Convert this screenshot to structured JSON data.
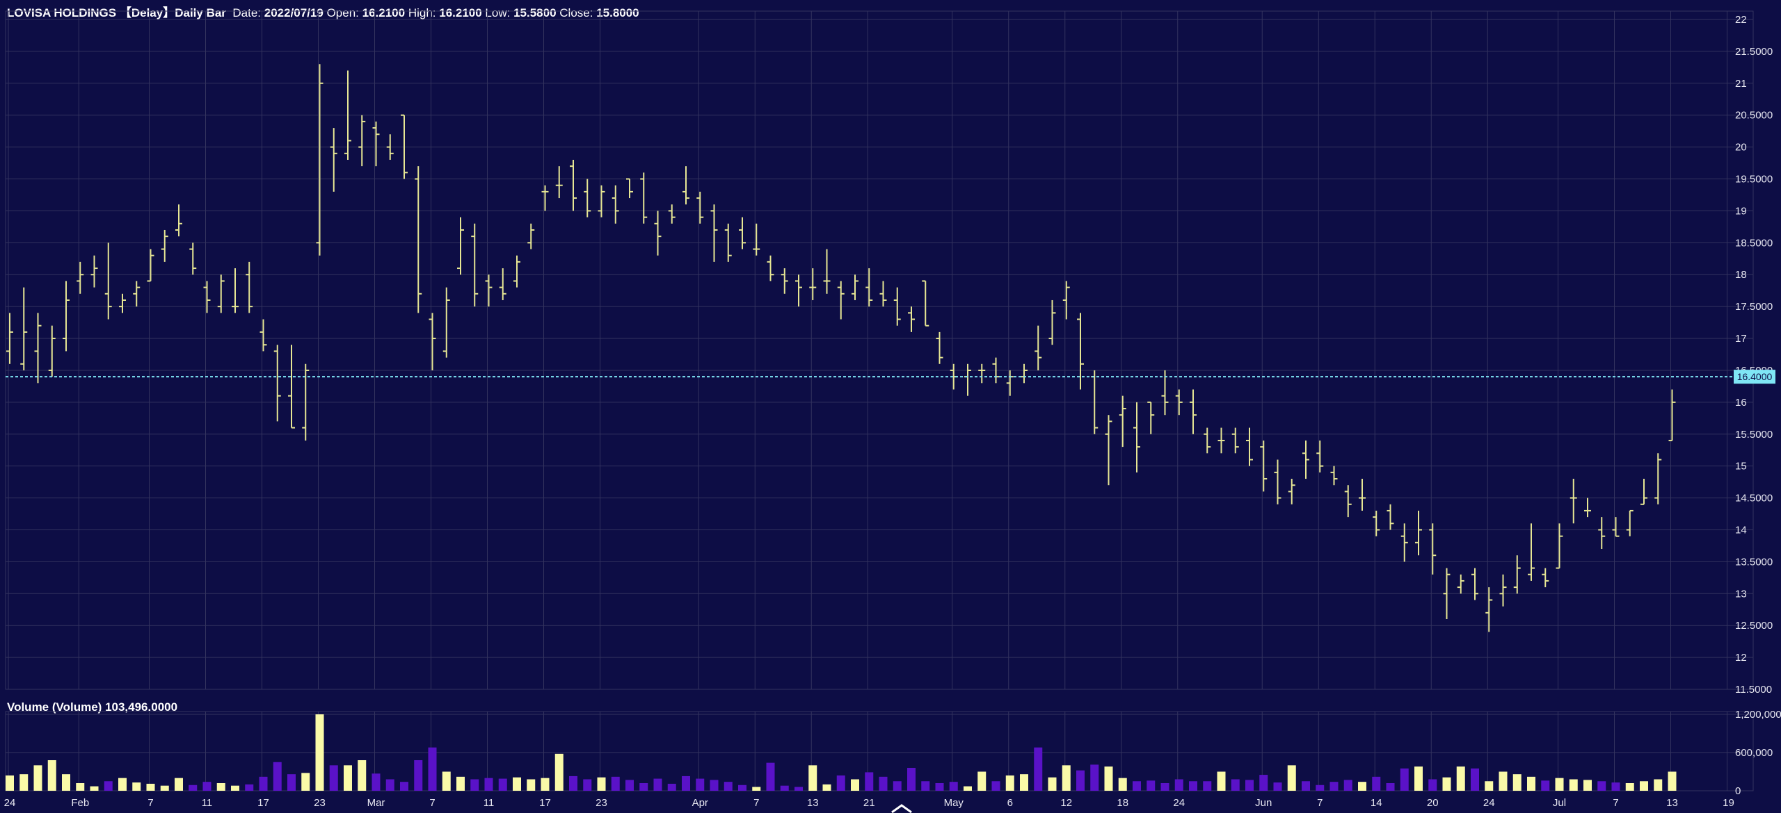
{
  "header": {
    "instrument": "LOVISA HOLDINGS",
    "feed": "【Delay】Daily Bar",
    "date_label": "Date:",
    "date_value": "2022/07/19",
    "open_label": "Open:",
    "open_value": "16.2100",
    "high_label": "High:",
    "high_value": "16.2100",
    "low_label": "Low:",
    "low_value": "15.5800",
    "close_label": "Close:",
    "close_value": "15.8000"
  },
  "volume_header": {
    "label": "Volume (Volume)",
    "value": "103,496.0000"
  },
  "colors": {
    "background": "#0d0d45",
    "grid": "#33335e",
    "bar": "#e6e694",
    "volume_up": "#fafaa8",
    "volume_down": "#5a12c8",
    "last_price_line": "#7fe6f5"
  },
  "chart_data": {
    "type": "ohlc",
    "last_price": 16.4,
    "last_price_label": "16.4000",
    "y_range": [
      11.5,
      22
    ],
    "y_ticks": [
      "22",
      "21.5000",
      "21",
      "20.5000",
      "20",
      "19.5000",
      "19",
      "18.5000",
      "18",
      "17.5000",
      "17",
      "16.5000",
      "16",
      "15.5000",
      "15",
      "14.5000",
      "14",
      "13.5000",
      "13",
      "12.5000",
      "12",
      "11.5000"
    ],
    "volume_range": [
      0,
      1200000
    ],
    "volume_ticks": [
      "1,200,000",
      "600,000",
      "0"
    ],
    "x_ticks": [
      {
        "label": "24",
        "i": 0
      },
      {
        "label": "Feb",
        "i": 5
      },
      {
        "label": "7",
        "i": 10
      },
      {
        "label": "11",
        "i": 14
      },
      {
        "label": "17",
        "i": 18
      },
      {
        "label": "23",
        "i": 22
      },
      {
        "label": "Mar",
        "i": 26
      },
      {
        "label": "7",
        "i": 30
      },
      {
        "label": "11",
        "i": 34
      },
      {
        "label": "17",
        "i": 38
      },
      {
        "label": "23",
        "i": 42
      },
      {
        "label": "Apr",
        "i": 49
      },
      {
        "label": "7",
        "i": 53
      },
      {
        "label": "13",
        "i": 57
      },
      {
        "label": "21",
        "i": 61
      },
      {
        "label": "May",
        "i": 67
      },
      {
        "label": "6",
        "i": 71
      },
      {
        "label": "12",
        "i": 75
      },
      {
        "label": "18",
        "i": 79
      },
      {
        "label": "24",
        "i": 83
      },
      {
        "label": "Jun",
        "i": 89
      },
      {
        "label": "7",
        "i": 93
      },
      {
        "label": "14",
        "i": 97
      },
      {
        "label": "20",
        "i": 101
      },
      {
        "label": "24",
        "i": 105
      },
      {
        "label": "Jul",
        "i": 110
      },
      {
        "label": "7",
        "i": 114
      },
      {
        "label": "13",
        "i": 118
      },
      {
        "label": "19",
        "i": 122
      }
    ],
    "bars": [
      {
        "o": 16.8,
        "h": 17.4,
        "l": 16.6,
        "c": 17.1,
        "v": 240000
      },
      {
        "o": 16.6,
        "h": 17.8,
        "l": 16.5,
        "c": 17.1,
        "v": 260000
      },
      {
        "o": 16.8,
        "h": 17.4,
        "l": 16.3,
        "c": 17.2,
        "v": 400000
      },
      {
        "o": 16.5,
        "h": 17.2,
        "l": 16.4,
        "c": 17.0,
        "v": 480000
      },
      {
        "o": 17.0,
        "h": 17.9,
        "l": 16.8,
        "c": 17.6,
        "v": 260000
      },
      {
        "o": 17.9,
        "h": 18.2,
        "l": 17.7,
        "c": 18.0,
        "v": 120000
      },
      {
        "o": 18.0,
        "h": 18.3,
        "l": 17.8,
        "c": 18.1,
        "v": 70000
      },
      {
        "o": 17.7,
        "h": 18.5,
        "l": 17.3,
        "c": 17.5,
        "v": 150000
      },
      {
        "o": 17.5,
        "h": 17.7,
        "l": 17.4,
        "c": 17.6,
        "v": 200000
      },
      {
        "o": 17.7,
        "h": 17.9,
        "l": 17.5,
        "c": 17.8,
        "v": 130000
      },
      {
        "o": 17.9,
        "h": 18.4,
        "l": 17.9,
        "c": 18.3,
        "v": 110000
      },
      {
        "o": 18.4,
        "h": 18.7,
        "l": 18.2,
        "c": 18.6,
        "v": 80000
      },
      {
        "o": 18.7,
        "h": 19.1,
        "l": 18.6,
        "c": 18.8,
        "v": 200000
      },
      {
        "o": 18.4,
        "h": 18.5,
        "l": 18.0,
        "c": 18.1,
        "v": 90000
      },
      {
        "o": 17.8,
        "h": 17.9,
        "l": 17.4,
        "c": 17.6,
        "v": 140000
      },
      {
        "o": 17.5,
        "h": 18.0,
        "l": 17.4,
        "c": 17.9,
        "v": 120000
      },
      {
        "o": 17.5,
        "h": 18.1,
        "l": 17.4,
        "c": 17.5,
        "v": 80000
      },
      {
        "o": 18.0,
        "h": 18.2,
        "l": 17.4,
        "c": 17.5,
        "v": 100000
      },
      {
        "o": 17.1,
        "h": 17.3,
        "l": 16.8,
        "c": 16.9,
        "v": 220000
      },
      {
        "o": 16.8,
        "h": 16.9,
        "l": 15.7,
        "c": 16.1,
        "v": 450000
      },
      {
        "o": 16.1,
        "h": 16.9,
        "l": 15.6,
        "c": 15.6,
        "v": 260000
      },
      {
        "o": 15.6,
        "h": 16.6,
        "l": 15.4,
        "c": 16.5,
        "v": 280000
      },
      {
        "o": 18.5,
        "h": 21.3,
        "l": 18.3,
        "c": 21.0,
        "v": 1200000
      },
      {
        "o": 20.0,
        "h": 20.3,
        "l": 19.3,
        "c": 19.9,
        "v": 400000
      },
      {
        "o": 19.9,
        "h": 21.2,
        "l": 19.8,
        "c": 20.1,
        "v": 400000
      },
      {
        "o": 20.0,
        "h": 20.5,
        "l": 19.7,
        "c": 20.4,
        "v": 480000
      },
      {
        "o": 20.3,
        "h": 20.4,
        "l": 19.7,
        "c": 20.2,
        "v": 270000
      },
      {
        "o": 20.0,
        "h": 20.2,
        "l": 19.8,
        "c": 19.9,
        "v": 180000
      },
      {
        "o": 20.5,
        "h": 20.5,
        "l": 19.5,
        "c": 19.6,
        "v": 140000
      },
      {
        "o": 19.5,
        "h": 19.7,
        "l": 17.4,
        "c": 17.7,
        "v": 480000
      },
      {
        "o": 17.3,
        "h": 17.4,
        "l": 16.5,
        "c": 17.0,
        "v": 680000
      },
      {
        "o": 16.8,
        "h": 17.8,
        "l": 16.7,
        "c": 17.6,
        "v": 300000
      },
      {
        "o": 18.1,
        "h": 18.9,
        "l": 18.0,
        "c": 18.7,
        "v": 220000
      },
      {
        "o": 18.6,
        "h": 18.8,
        "l": 17.5,
        "c": 17.7,
        "v": 180000
      },
      {
        "o": 17.9,
        "h": 18.0,
        "l": 17.5,
        "c": 17.8,
        "v": 200000
      },
      {
        "o": 17.8,
        "h": 18.1,
        "l": 17.6,
        "c": 17.7,
        "v": 190000
      },
      {
        "o": 17.9,
        "h": 18.3,
        "l": 17.8,
        "c": 18.2,
        "v": 210000
      },
      {
        "o": 18.5,
        "h": 18.8,
        "l": 18.4,
        "c": 18.7,
        "v": 180000
      },
      {
        "o": 19.3,
        "h": 19.4,
        "l": 19.0,
        "c": 19.3,
        "v": 200000
      },
      {
        "o": 19.4,
        "h": 19.7,
        "l": 19.2,
        "c": 19.4,
        "v": 580000
      },
      {
        "o": 19.7,
        "h": 19.8,
        "l": 19.0,
        "c": 19.2,
        "v": 230000
      },
      {
        "o": 19.3,
        "h": 19.5,
        "l": 18.9,
        "c": 19.0,
        "v": 180000
      },
      {
        "o": 19.0,
        "h": 19.4,
        "l": 18.9,
        "c": 19.3,
        "v": 210000
      },
      {
        "o": 19.2,
        "h": 19.4,
        "l": 18.8,
        "c": 19.0,
        "v": 220000
      },
      {
        "o": 19.5,
        "h": 19.5,
        "l": 19.2,
        "c": 19.3,
        "v": 170000
      },
      {
        "o": 19.5,
        "h": 19.6,
        "l": 18.8,
        "c": 18.9,
        "v": 120000
      },
      {
        "o": 18.8,
        "h": 19.0,
        "l": 18.3,
        "c": 18.6,
        "v": 190000
      },
      {
        "o": 19.0,
        "h": 19.1,
        "l": 18.8,
        "c": 18.9,
        "v": 110000
      },
      {
        "o": 19.3,
        "h": 19.7,
        "l": 19.1,
        "c": 19.2,
        "v": 230000
      },
      {
        "o": 19.2,
        "h": 19.3,
        "l": 18.8,
        "c": 18.9,
        "v": 190000
      },
      {
        "o": 19.0,
        "h": 19.1,
        "l": 18.2,
        "c": 18.7,
        "v": 170000
      },
      {
        "o": 18.7,
        "h": 18.8,
        "l": 18.2,
        "c": 18.3,
        "v": 140000
      },
      {
        "o": 18.7,
        "h": 18.9,
        "l": 18.4,
        "c": 18.5,
        "v": 90000
      },
      {
        "o": 18.4,
        "h": 18.8,
        "l": 18.3,
        "c": 18.4,
        "v": 60000
      },
      {
        "o": 18.2,
        "h": 18.3,
        "l": 17.9,
        "c": 18.0,
        "v": 440000
      },
      {
        "o": 18.0,
        "h": 18.1,
        "l": 17.7,
        "c": 17.9,
        "v": 80000
      },
      {
        "o": 17.9,
        "h": 18.0,
        "l": 17.5,
        "c": 17.8,
        "v": 60000
      },
      {
        "o": 17.8,
        "h": 18.1,
        "l": 17.6,
        "c": 17.8,
        "v": 400000
      },
      {
        "o": 17.9,
        "h": 18.4,
        "l": 17.7,
        "c": 17.9,
        "v": 100000
      },
      {
        "o": 17.8,
        "h": 17.9,
        "l": 17.3,
        "c": 17.7,
        "v": 240000
      },
      {
        "o": 17.7,
        "h": 18.0,
        "l": 17.6,
        "c": 17.9,
        "v": 180000
      },
      {
        "o": 17.8,
        "h": 18.1,
        "l": 17.5,
        "c": 17.6,
        "v": 290000
      },
      {
        "o": 17.7,
        "h": 17.9,
        "l": 17.5,
        "c": 17.6,
        "v": 220000
      },
      {
        "o": 17.6,
        "h": 17.8,
        "l": 17.2,
        "c": 17.3,
        "v": 150000
      },
      {
        "o": 17.4,
        "h": 17.5,
        "l": 17.1,
        "c": 17.3,
        "v": 360000
      },
      {
        "o": 17.9,
        "h": 17.9,
        "l": 17.2,
        "c": 17.2,
        "v": 150000
      },
      {
        "o": 17.0,
        "h": 17.1,
        "l": 16.6,
        "c": 16.7,
        "v": 120000
      },
      {
        "o": 16.5,
        "h": 16.6,
        "l": 16.2,
        "c": 16.4,
        "v": 140000
      },
      {
        "o": 16.4,
        "h": 16.6,
        "l": 16.1,
        "c": 16.5,
        "v": 70000
      },
      {
        "o": 16.5,
        "h": 16.6,
        "l": 16.3,
        "c": 16.5,
        "v": 300000
      },
      {
        "o": 16.6,
        "h": 16.7,
        "l": 16.3,
        "c": 16.4,
        "v": 150000
      },
      {
        "o": 16.3,
        "h": 16.5,
        "l": 16.1,
        "c": 16.4,
        "v": 240000
      },
      {
        "o": 16.4,
        "h": 16.6,
        "l": 16.3,
        "c": 16.5,
        "v": 260000
      },
      {
        "o": 16.8,
        "h": 17.2,
        "l": 16.5,
        "c": 16.7,
        "v": 680000
      },
      {
        "o": 17.0,
        "h": 17.6,
        "l": 16.9,
        "c": 17.4,
        "v": 210000
      },
      {
        "o": 17.6,
        "h": 17.9,
        "l": 17.3,
        "c": 17.8,
        "v": 400000
      },
      {
        "o": 17.3,
        "h": 17.4,
        "l": 16.2,
        "c": 16.6,
        "v": 320000
      },
      {
        "o": 16.4,
        "h": 16.5,
        "l": 15.5,
        "c": 15.6,
        "v": 410000
      },
      {
        "o": 15.5,
        "h": 15.8,
        "l": 14.7,
        "c": 15.7,
        "v": 380000
      },
      {
        "o": 15.8,
        "h": 16.1,
        "l": 15.3,
        "c": 15.9,
        "v": 200000
      },
      {
        "o": 15.6,
        "h": 16.0,
        "l": 14.9,
        "c": 15.3,
        "v": 150000
      },
      {
        "o": 16.0,
        "h": 16.0,
        "l": 15.5,
        "c": 15.8,
        "v": 160000
      },
      {
        "o": 16.1,
        "h": 16.5,
        "l": 15.8,
        "c": 16.0,
        "v": 120000
      },
      {
        "o": 16.1,
        "h": 16.2,
        "l": 15.8,
        "c": 16.0,
        "v": 180000
      },
      {
        "o": 16.0,
        "h": 16.2,
        "l": 15.5,
        "c": 15.8,
        "v": 150000
      },
      {
        "o": 15.5,
        "h": 15.6,
        "l": 15.2,
        "c": 15.3,
        "v": 150000
      },
      {
        "o": 15.4,
        "h": 15.6,
        "l": 15.2,
        "c": 15.4,
        "v": 300000
      },
      {
        "o": 15.5,
        "h": 15.6,
        "l": 15.2,
        "c": 15.3,
        "v": 180000
      },
      {
        "o": 15.4,
        "h": 15.6,
        "l": 15.0,
        "c": 15.1,
        "v": 170000
      },
      {
        "o": 15.3,
        "h": 15.4,
        "l": 14.6,
        "c": 14.8,
        "v": 250000
      },
      {
        "o": 14.9,
        "h": 15.1,
        "l": 14.4,
        "c": 14.5,
        "v": 130000
      },
      {
        "o": 14.6,
        "h": 14.8,
        "l": 14.4,
        "c": 14.7,
        "v": 400000
      },
      {
        "o": 15.2,
        "h": 15.4,
        "l": 14.8,
        "c": 15.1,
        "v": 150000
      },
      {
        "o": 15.2,
        "h": 15.4,
        "l": 14.9,
        "c": 15.0,
        "v": 90000
      },
      {
        "o": 14.9,
        "h": 15.0,
        "l": 14.7,
        "c": 14.8,
        "v": 140000
      },
      {
        "o": 14.6,
        "h": 14.7,
        "l": 14.2,
        "c": 14.4,
        "v": 170000
      },
      {
        "o": 14.5,
        "h": 14.8,
        "l": 14.3,
        "c": 14.5,
        "v": 140000
      },
      {
        "o": 14.2,
        "h": 14.3,
        "l": 13.9,
        "c": 14.0,
        "v": 220000
      },
      {
        "o": 14.3,
        "h": 14.4,
        "l": 14.0,
        "c": 14.1,
        "v": 120000
      },
      {
        "o": 13.9,
        "h": 14.1,
        "l": 13.5,
        "c": 13.8,
        "v": 350000
      },
      {
        "o": 13.8,
        "h": 14.3,
        "l": 13.6,
        "c": 14.0,
        "v": 380000
      },
      {
        "o": 14.0,
        "h": 14.1,
        "l": 13.3,
        "c": 13.6,
        "v": 180000
      },
      {
        "o": 13.0,
        "h": 13.4,
        "l": 12.6,
        "c": 13.3,
        "v": 210000
      },
      {
        "o": 13.1,
        "h": 13.3,
        "l": 13.0,
        "c": 13.2,
        "v": 380000
      },
      {
        "o": 13.3,
        "h": 13.4,
        "l": 12.9,
        "c": 13.0,
        "v": 350000
      },
      {
        "o": 12.7,
        "h": 13.1,
        "l": 12.4,
        "c": 12.9,
        "v": 150000
      },
      {
        "o": 13.0,
        "h": 13.3,
        "l": 12.8,
        "c": 13.1,
        "v": 300000
      },
      {
        "o": 13.1,
        "h": 13.6,
        "l": 13.0,
        "c": 13.4,
        "v": 260000
      },
      {
        "o": 13.3,
        "h": 14.1,
        "l": 13.2,
        "c": 13.4,
        "v": 220000
      },
      {
        "o": 13.3,
        "h": 13.4,
        "l": 13.1,
        "c": 13.2,
        "v": 160000
      },
      {
        "o": 13.4,
        "h": 14.1,
        "l": 13.4,
        "c": 13.9,
        "v": 200000
      },
      {
        "o": 14.5,
        "h": 14.8,
        "l": 14.1,
        "c": 14.5,
        "v": 180000
      },
      {
        "o": 14.3,
        "h": 14.5,
        "l": 14.2,
        "c": 14.3,
        "v": 170000
      },
      {
        "o": 14.0,
        "h": 14.2,
        "l": 13.7,
        "c": 13.9,
        "v": 150000
      },
      {
        "o": 14.0,
        "h": 14.2,
        "l": 13.9,
        "c": 13.9,
        "v": 130000
      },
      {
        "o": 14.0,
        "h": 14.3,
        "l": 13.9,
        "c": 14.3,
        "v": 120000
      },
      {
        "o": 14.4,
        "h": 14.8,
        "l": 14.4,
        "c": 14.5,
        "v": 150000
      },
      {
        "o": 14.5,
        "h": 15.2,
        "l": 14.4,
        "c": 15.1,
        "v": 180000
      },
      {
        "o": 15.4,
        "h": 16.2,
        "l": 15.4,
        "c": 16.0,
        "v": 300000
      }
    ]
  }
}
